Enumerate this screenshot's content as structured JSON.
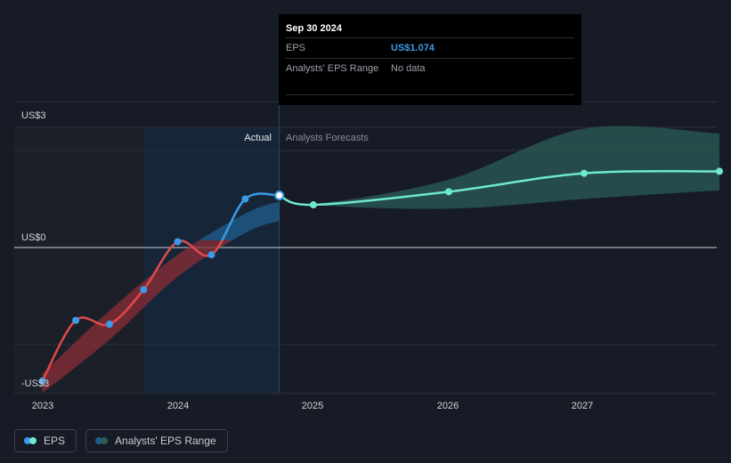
{
  "tooltip": {
    "date": "Sep 30 2024",
    "rows": [
      {
        "label": "EPS",
        "value": "US$1.074"
      },
      {
        "label": "Analysts' EPS Range",
        "value": "No data"
      }
    ]
  },
  "legend": {
    "eps_label": "EPS",
    "range_label": "Analysts' EPS Range"
  },
  "colors": {
    "background": "#161b26",
    "eps_negative": "#e04a4a",
    "eps_positive": "#3b9be8",
    "forecast": "#6ee8d0",
    "forecast_range": "#2b5c57",
    "actual_range_negative": "#8c2e35",
    "actual_range_positive": "#1f5f8f"
  },
  "chart_data": {
    "type": "line",
    "y_tick_labels": [
      "US$3",
      "US$0",
      "-US$3"
    ],
    "x_tick_labels": [
      "2023",
      "2024",
      "2025",
      "2026",
      "2027"
    ],
    "ylim": [
      -3,
      3
    ],
    "section_labels": {
      "actual": "Actual",
      "forecast": "Analysts Forecasts"
    },
    "series": [
      {
        "name": "EPS",
        "kind": "actual",
        "points": [
          {
            "x": "2022-12-31",
            "y": -2.75
          },
          {
            "x": "2023-03-31",
            "y": -1.5
          },
          {
            "x": "2023-06-30",
            "y": -1.58
          },
          {
            "x": "2023-09-30",
            "y": -0.87
          },
          {
            "x": "2023-12-31",
            "y": 0.12
          },
          {
            "x": "2024-03-31",
            "y": -0.15
          },
          {
            "x": "2024-06-30",
            "y": 1.0
          },
          {
            "x": "2024-09-30",
            "y": 1.074
          }
        ]
      },
      {
        "name": "EPS forecast",
        "kind": "forecast",
        "points": [
          {
            "x": "2024-09-30",
            "y": 1.074
          },
          {
            "x": "2024-12-31",
            "y": 0.88
          },
          {
            "x": "2025-12-31",
            "y": 1.15
          },
          {
            "x": "2026-12-31",
            "y": 1.53
          },
          {
            "x": "2027-12-31",
            "y": 1.57
          }
        ]
      }
    ],
    "actual_range": {
      "lower": [
        {
          "x": "2022-12-31",
          "y": -3.0
        },
        {
          "x": "2023-06-30",
          "y": -1.9
        },
        {
          "x": "2023-12-31",
          "y": -0.6
        },
        {
          "x": "2024-06-30",
          "y": 0.3
        },
        {
          "x": "2024-09-30",
          "y": 0.55
        }
      ],
      "upper": [
        {
          "x": "2022-12-31",
          "y": -2.6
        },
        {
          "x": "2023-06-30",
          "y": -1.3
        },
        {
          "x": "2023-12-31",
          "y": -0.15
        },
        {
          "x": "2024-06-30",
          "y": 0.7
        },
        {
          "x": "2024-09-30",
          "y": 0.95
        }
      ]
    },
    "forecast_range": {
      "lower": [
        {
          "x": "2024-09-30",
          "y": 1.074
        },
        {
          "x": "2024-12-31",
          "y": 0.88
        },
        {
          "x": "2025-12-31",
          "y": 0.8
        },
        {
          "x": "2026-12-31",
          "y": 1.0
        },
        {
          "x": "2027-12-31",
          "y": 1.18
        }
      ],
      "upper": [
        {
          "x": "2024-09-30",
          "y": 1.074
        },
        {
          "x": "2024-12-31",
          "y": 0.9
        },
        {
          "x": "2025-12-31",
          "y": 1.4
        },
        {
          "x": "2026-12-31",
          "y": 2.45
        },
        {
          "x": "2027-12-31",
          "y": 2.35
        }
      ]
    }
  }
}
